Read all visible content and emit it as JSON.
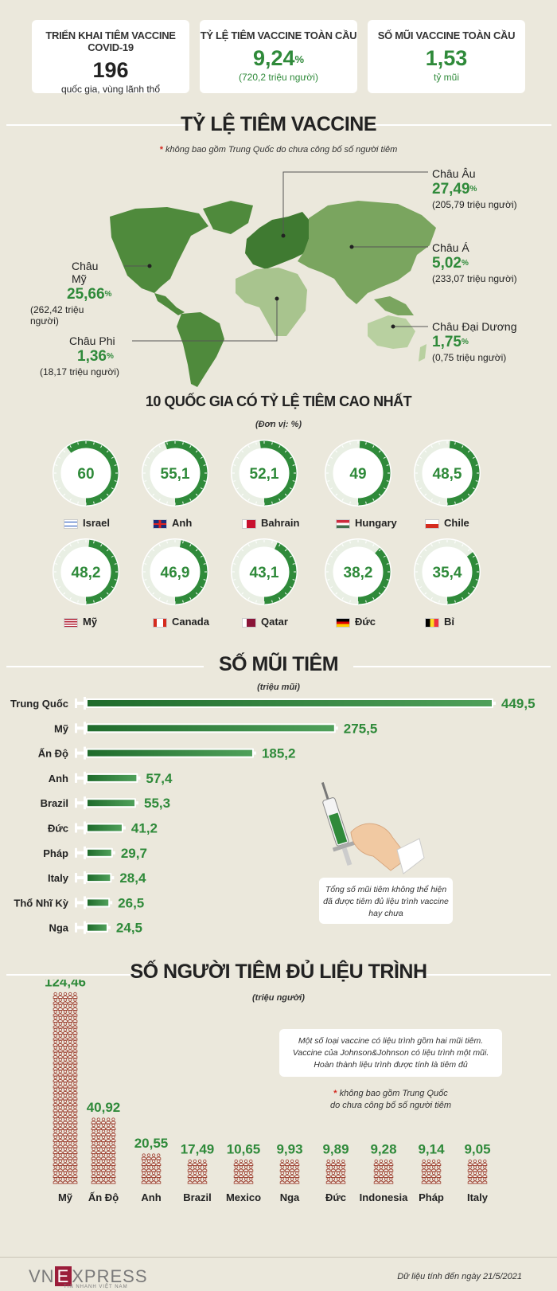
{
  "summary": [
    {
      "label": "TRIỂN KHAI TIÊM VACCINE COVID-19",
      "value": "196",
      "unit": "",
      "sub": "quốc gia, vùng lãnh thổ"
    },
    {
      "label": "TỶ LỆ TIÊM VACCINE TOÀN CẦU",
      "value": "9,24",
      "unit": "%",
      "sub": "(720,2 triệu người)"
    },
    {
      "label": "SỐ MŨI VACCINE TOÀN CẦU",
      "value": "1,53",
      "unit": "",
      "sub": "tỷ mũi"
    }
  ],
  "map_section": {
    "title": "TỶ LỆ TIÊM VACCINE",
    "note_star": "*",
    "note": " không bao gồm Trung Quốc do chưa công bố số người tiêm",
    "regions": [
      {
        "name": "Châu Âu",
        "pct": "27,49",
        "unit": "%",
        "people": "(205,79 triệu người)"
      },
      {
        "name": "Châu Á",
        "pct": "5,02",
        "unit": "%",
        "people": "(233,07 triệu người)"
      },
      {
        "name": "Châu Đại Dương",
        "pct": "1,75",
        "unit": "%",
        "people": "(0,75 triệu người)"
      },
      {
        "name": "Châu Mỹ",
        "pct": "25,66",
        "unit": "%",
        "people": "(262,42 triệu người)"
      },
      {
        "name": "Châu Phi",
        "pct": "1,36",
        "unit": "%",
        "people": "(18,17 triệu người)"
      }
    ],
    "colors": {
      "europe": "#3f7a31",
      "asia": "#7aa55f",
      "americas": "#4f8a3c",
      "africa": "#a8c48e",
      "oceania": "#b8d0a0"
    }
  },
  "gauges_section": {
    "title": "10 QUỐC GIA CÓ TỶ LỆ TIÊM CAO NHẤT",
    "unit_note": "(Đơn vị: %)"
  },
  "doses_section": {
    "title": "SỐ MŨI TIÊM",
    "unit_note": "(triệu mũi)",
    "callout": [
      "Tổng số mũi tiêm không thể hiện",
      "đã được tiêm đủ liệu trình vaccine",
      "hay chưa"
    ]
  },
  "people_section": {
    "title": "SỐ NGƯỜI TIÊM ĐỦ LIỆU TRÌNH",
    "unit_note": "(triệu người)",
    "callout": [
      "Một số loại vaccine có liệu trình gồm hai mũi tiêm.",
      "Vaccine của Johnson&Johnson có liệu trình một mũi.",
      "Hoàn thành liệu trình được tính là tiêm đủ"
    ],
    "note_star": "*",
    "note_lines": [
      " không bao gồm Trung Quốc",
      "do chưa công bố số người tiêm"
    ]
  },
  "chart_data": [
    {
      "type": "pie",
      "title": "10 QUỐC GIA CÓ TỶ LỆ TIÊM CAO NHẤT",
      "ylabel": "(Đơn vị: %)",
      "categories": [
        "Israel",
        "Anh",
        "Bahrain",
        "Hungary",
        "Chile",
        "Mỹ",
        "Canada",
        "Qatar",
        "Đức",
        "Bỉ"
      ],
      "values": [
        60,
        55.1,
        52.1,
        49,
        48.5,
        48.2,
        46.9,
        43.1,
        38.2,
        35.4
      ],
      "labels": [
        "60",
        "55,1",
        "52,1",
        "49",
        "48,5",
        "48,2",
        "46,9",
        "43,1",
        "38,2",
        "35,4"
      ],
      "ylim": [
        0,
        100
      ]
    },
    {
      "type": "bar",
      "title": "SỐ MŨI TIÊM",
      "ylabel": "(triệu mũi)",
      "categories": [
        "Trung Quốc",
        "Mỹ",
        "Ấn Độ",
        "Anh",
        "Brazil",
        "Đức",
        "Pháp",
        "Italy",
        "Thổ Nhĩ Kỳ",
        "Nga"
      ],
      "values": [
        449.5,
        275.5,
        185.2,
        57.4,
        55.3,
        41.2,
        29.7,
        28.4,
        26.5,
        24.5
      ],
      "labels": [
        "449,5",
        "275,5",
        "185,2",
        "57,4",
        "55,3",
        "41,2",
        "29,7",
        "28,4",
        "26,5",
        "24,5"
      ]
    },
    {
      "type": "bar",
      "title": "SỐ NGƯỜI TIÊM ĐỦ LIỆU TRÌNH",
      "ylabel": "(triệu người)",
      "categories": [
        "Mỹ",
        "Ấn Độ",
        "Anh",
        "Brazil",
        "Mexico",
        "Nga",
        "Đức",
        "Indonesia",
        "Pháp",
        "Italy"
      ],
      "values": [
        124.46,
        40.92,
        20.55,
        17.49,
        10.65,
        9.93,
        9.89,
        9.28,
        9.14,
        9.05
      ],
      "labels": [
        "124,46",
        "40,92",
        "20,55",
        "17,49",
        "10,65",
        "9,93",
        "9,89",
        "9,28",
        "9,14",
        "9,05"
      ]
    }
  ],
  "flags": [
    "israel-flag-icon",
    "uk-flag-icon",
    "bahrain-flag-icon",
    "hungary-flag-icon",
    "chile-flag-icon",
    "usa-flag-icon",
    "canada-flag-icon",
    "qatar-flag-icon",
    "germany-flag-icon",
    "belgium-flag-icon"
  ],
  "accent": "#2f8a3a",
  "footer": {
    "logo_prefix": "VN",
    "logo_mid": "E",
    "logo_suffix": "XPRESS",
    "logo_tag": "TIN NHANH VIỆT NAM",
    "source": "Dữ liệu tính đến ngày 21/5/2021"
  }
}
